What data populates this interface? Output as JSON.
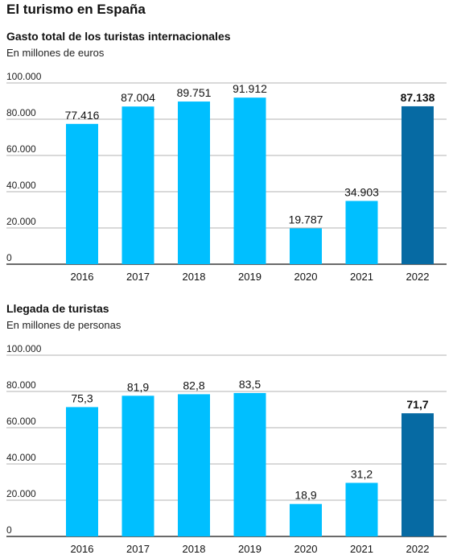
{
  "page": {
    "title": "El turismo en España"
  },
  "colors": {
    "bar": "#00bfff",
    "highlight": "#066aa3",
    "grid": "#9a9a9a",
    "axis": "#111111"
  },
  "chart_data": [
    {
      "type": "bar",
      "title": "Gasto total de los turistas internacionales",
      "subtitle": "En millones de euros",
      "categories": [
        "2016",
        "2017",
        "2018",
        "2019",
        "2020",
        "2021",
        "2022"
      ],
      "values": [
        77416,
        87004,
        89751,
        91912,
        19787,
        34903,
        87138
      ],
      "value_labels": [
        "77.416",
        "87.004",
        "89.751",
        "91.912",
        "19.787",
        "34.903",
        "87.138"
      ],
      "highlight": "2022",
      "ylim": [
        0,
        100000
      ],
      "yticks": [
        0,
        20000,
        40000,
        60000,
        80000,
        100000
      ],
      "ytick_labels": [
        "0",
        "20.000",
        "40.000",
        "60.000",
        "80.000",
        "100.000"
      ],
      "grid": true
    },
    {
      "type": "bar",
      "title": "Llegada de turistas",
      "subtitle": "En millones de personas",
      "categories": [
        "2016",
        "2017",
        "2018",
        "2019",
        "2020",
        "2021",
        "2022"
      ],
      "values": [
        75.3,
        81.9,
        82.8,
        83.5,
        18.9,
        31.2,
        71.7
      ],
      "value_labels": [
        "75,3",
        "81,9",
        "82,8",
        "83,5",
        "18,9",
        "31,2",
        "71,7"
      ],
      "highlight": "2022",
      "ytick_labels": [
        "0",
        "20.000",
        "40.000",
        "60.000",
        "80.000",
        "100.000"
      ],
      "grid": true
    }
  ]
}
